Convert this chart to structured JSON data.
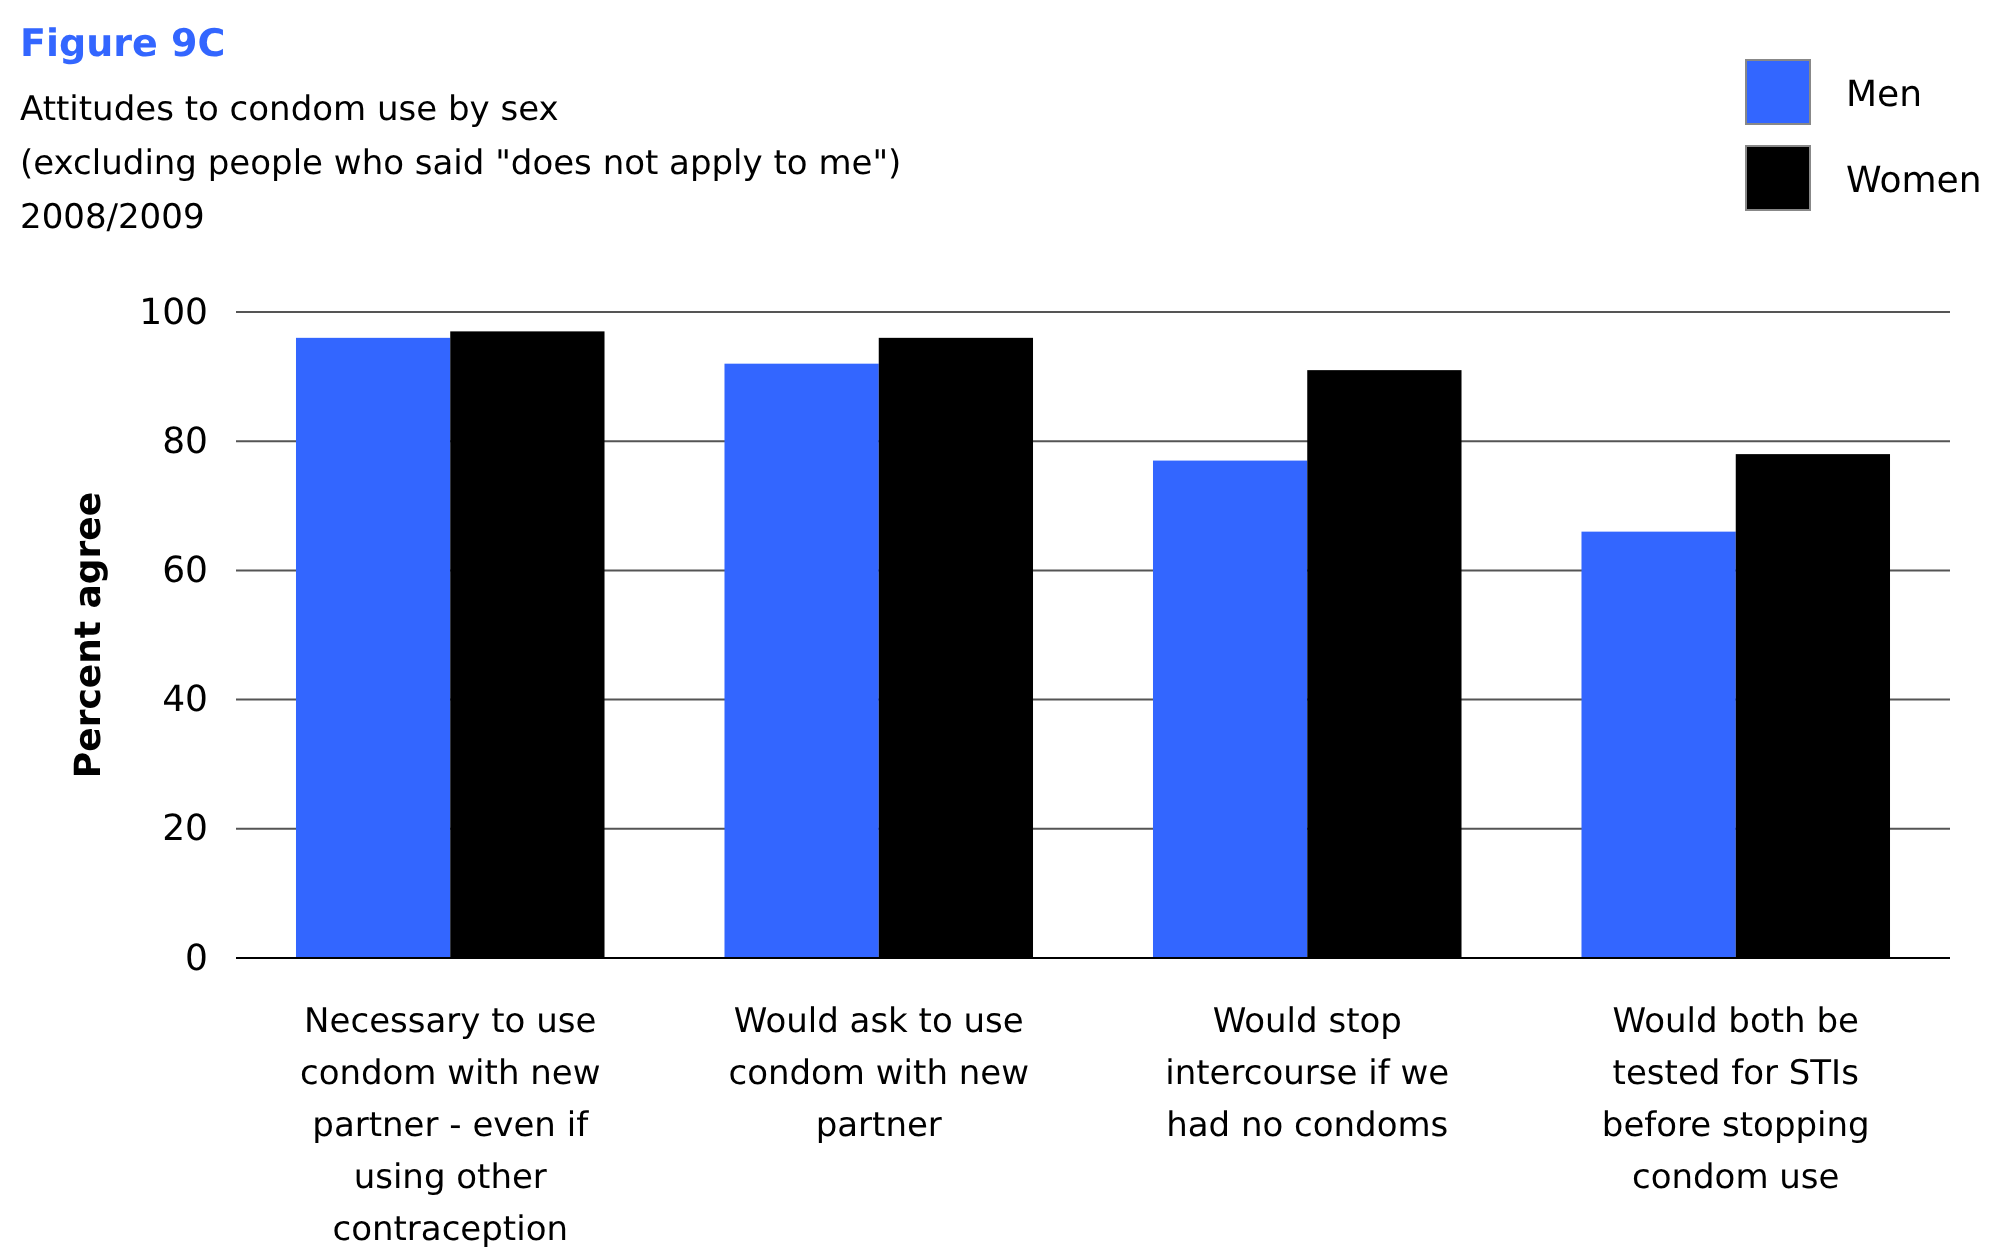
{
  "chart_data": {
    "type": "bar",
    "title": "Figure 9C",
    "subtitle": "Attitudes to condom use by sex\n(excluding people who said \"does not apply to me\")\n2008/2009",
    "ylabel": "Percent agree",
    "categories": [
      "Necessary to use condom with new partner - even if using other contraception",
      "Would ask to use condom with new partner",
      "Would stop intercourse if we had no condoms",
      "Would both be tested for STIs before stopping condom use"
    ],
    "series": [
      {
        "name": "Men",
        "color": "#3366ff",
        "values": [
          96,
          92,
          77,
          66
        ]
      },
      {
        "name": "Women",
        "color": "#000000",
        "values": [
          97,
          96,
          91,
          78
        ]
      }
    ],
    "ylim": [
      0,
      100
    ],
    "yticks": [
      0,
      20,
      40,
      60,
      80,
      100
    ],
    "grid": "y",
    "legend": "top right"
  }
}
